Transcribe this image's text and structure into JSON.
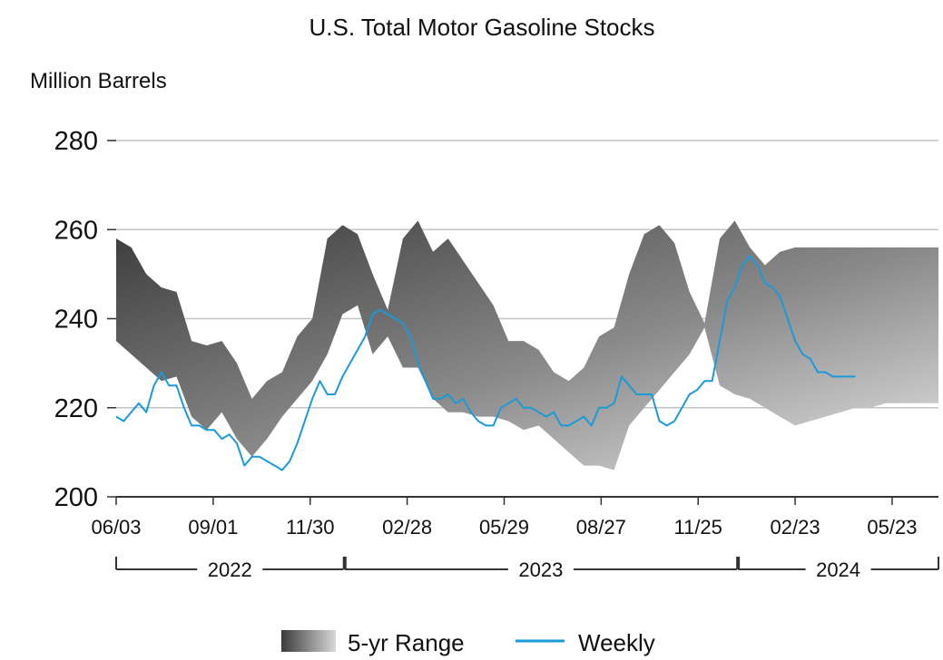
{
  "chart_data": {
    "type": "area",
    "title": "U.S. Total Motor Gasoline Stocks",
    "ylabel": "Million Barrels",
    "xlabel": "",
    "ylim": [
      200,
      280
    ],
    "yticks": [
      200,
      220,
      240,
      260,
      280
    ],
    "x_range": [
      "2022-06-03",
      "2024-07-05"
    ],
    "grid": true,
    "legend_position": "bottom",
    "x_ticks": [
      {
        "date": "2022-06-03",
        "label": "06/03"
      },
      {
        "date": "2022-09-01",
        "label": "09/01"
      },
      {
        "date": "2022-11-30",
        "label": "11/30"
      },
      {
        "date": "2023-02-28",
        "label": "02/28"
      },
      {
        "date": "2023-05-29",
        "label": "05/29"
      },
      {
        "date": "2023-08-27",
        "label": "08/27"
      },
      {
        "date": "2023-11-25",
        "label": "11/25"
      },
      {
        "date": "2024-02-23",
        "label": "02/23"
      },
      {
        "date": "2024-05-23",
        "label": "05/23"
      }
    ],
    "years": [
      {
        "label": "2022",
        "start": "2022-06-03",
        "end": "2022-12-31"
      },
      {
        "label": "2023",
        "start": "2023-01-01",
        "end": "2023-12-31"
      },
      {
        "label": "2024",
        "start": "2024-01-01",
        "end": "2024-07-05"
      }
    ],
    "series": [
      {
        "name": "5-yr Range",
        "type": "range",
        "x": [
          "2022-06-03",
          "2022-06-17",
          "2022-07-01",
          "2022-07-15",
          "2022-07-29",
          "2022-08-12",
          "2022-08-26",
          "2022-09-09",
          "2022-09-23",
          "2022-10-07",
          "2022-10-21",
          "2022-11-04",
          "2022-11-18",
          "2022-12-02",
          "2022-12-16",
          "2022-12-30",
          "2023-01-13",
          "2023-01-27",
          "2023-02-10",
          "2023-02-24",
          "2023-03-10",
          "2023-03-24",
          "2023-04-07",
          "2023-04-21",
          "2023-05-05",
          "2023-05-19",
          "2023-06-02",
          "2023-06-16",
          "2023-06-30",
          "2023-07-14",
          "2023-07-28",
          "2023-08-11",
          "2023-08-25",
          "2023-09-08",
          "2023-09-22",
          "2023-10-06",
          "2023-10-20",
          "2023-11-03",
          "2023-11-17",
          "2023-12-01",
          "2023-12-15",
          "2023-12-29",
          "2024-01-12",
          "2024-01-26",
          "2024-02-09",
          "2024-02-23",
          "2024-03-08",
          "2024-03-22",
          "2024-04-05",
          "2024-04-19",
          "2024-05-03",
          "2024-05-17",
          "2024-05-31",
          "2024-06-14",
          "2024-06-28",
          "2024-07-05"
        ],
        "high": [
          258,
          256,
          250,
          247,
          246,
          235,
          234,
          235,
          230,
          222,
          226,
          228,
          236,
          240,
          258,
          261,
          259,
          250,
          242,
          258,
          262,
          255,
          258,
          253,
          248,
          243,
          235,
          235,
          233,
          228,
          226,
          229,
          236,
          238,
          250,
          259,
          261,
          257,
          246,
          239,
          258,
          262,
          256,
          252,
          255,
          256,
          256,
          256,
          256,
          256,
          256,
          256,
          256,
          256,
          256,
          256
        ],
        "low": [
          235,
          232,
          229,
          226,
          227,
          218,
          215,
          219,
          213,
          209,
          213,
          218,
          222,
          226,
          232,
          241,
          243,
          232,
          236,
          229,
          229,
          222,
          219,
          219,
          218,
          218,
          217,
          215,
          216,
          213,
          210,
          207,
          207,
          206,
          216,
          220,
          224,
          228,
          232,
          238,
          225,
          223,
          222,
          220,
          218,
          216,
          217,
          218,
          219,
          220,
          220,
          221,
          221,
          221,
          221,
          221
        ]
      },
      {
        "name": "Weekly",
        "type": "line",
        "color": "#1a9ad9",
        "x": [
          "2022-06-03",
          "2022-06-10",
          "2022-06-17",
          "2022-06-24",
          "2022-07-01",
          "2022-07-08",
          "2022-07-15",
          "2022-07-22",
          "2022-07-29",
          "2022-08-05",
          "2022-08-12",
          "2022-08-19",
          "2022-08-26",
          "2022-09-02",
          "2022-09-09",
          "2022-09-16",
          "2022-09-23",
          "2022-09-30",
          "2022-10-07",
          "2022-10-14",
          "2022-10-21",
          "2022-10-28",
          "2022-11-04",
          "2022-11-11",
          "2022-11-18",
          "2022-11-25",
          "2022-12-02",
          "2022-12-09",
          "2022-12-16",
          "2022-12-23",
          "2022-12-30",
          "2023-01-06",
          "2023-01-13",
          "2023-01-20",
          "2023-01-27",
          "2023-02-03",
          "2023-02-10",
          "2023-02-17",
          "2023-02-24",
          "2023-03-03",
          "2023-03-10",
          "2023-03-17",
          "2023-03-24",
          "2023-03-31",
          "2023-04-07",
          "2023-04-14",
          "2023-04-21",
          "2023-04-28",
          "2023-05-05",
          "2023-05-12",
          "2023-05-19",
          "2023-05-26",
          "2023-06-02",
          "2023-06-09",
          "2023-06-16",
          "2023-06-23",
          "2023-06-30",
          "2023-07-07",
          "2023-07-14",
          "2023-07-21",
          "2023-07-28",
          "2023-08-04",
          "2023-08-11",
          "2023-08-18",
          "2023-08-25",
          "2023-09-01",
          "2023-09-08",
          "2023-09-15",
          "2023-09-22",
          "2023-09-29",
          "2023-10-06",
          "2023-10-13",
          "2023-10-20",
          "2023-10-27",
          "2023-11-03",
          "2023-11-10",
          "2023-11-17",
          "2023-11-24",
          "2023-12-01",
          "2023-12-08",
          "2023-12-15",
          "2023-12-22",
          "2023-12-29",
          "2024-01-05",
          "2024-01-12",
          "2024-01-19",
          "2024-01-26",
          "2024-02-02",
          "2024-02-09",
          "2024-02-16",
          "2024-02-23",
          "2024-03-01",
          "2024-03-08",
          "2024-03-15",
          "2024-03-22",
          "2024-03-29",
          "2024-04-05",
          "2024-04-12",
          "2024-04-19"
        ],
        "values": [
          218,
          217,
          219,
          221,
          219,
          225,
          228,
          225,
          225,
          220,
          216,
          216,
          215,
          215,
          213,
          214,
          212,
          207,
          209,
          209,
          208,
          207,
          206,
          208,
          212,
          217,
          222,
          226,
          223,
          223,
          227,
          230,
          233,
          236,
          241,
          242,
          241,
          240,
          239,
          236,
          230,
          226,
          222,
          222,
          223,
          221,
          222,
          219,
          217,
          216,
          216,
          220,
          221,
          222,
          220,
          220,
          219,
          218,
          219,
          216,
          216,
          217,
          218,
          216,
          220,
          220,
          221,
          227,
          225,
          223,
          223,
          223,
          217,
          216,
          217,
          220,
          223,
          224,
          226,
          226,
          235,
          244,
          247,
          252,
          254,
          252,
          248,
          247,
          245,
          240,
          235,
          232,
          231,
          228,
          228,
          227,
          227,
          227,
          227
        ]
      }
    ]
  }
}
